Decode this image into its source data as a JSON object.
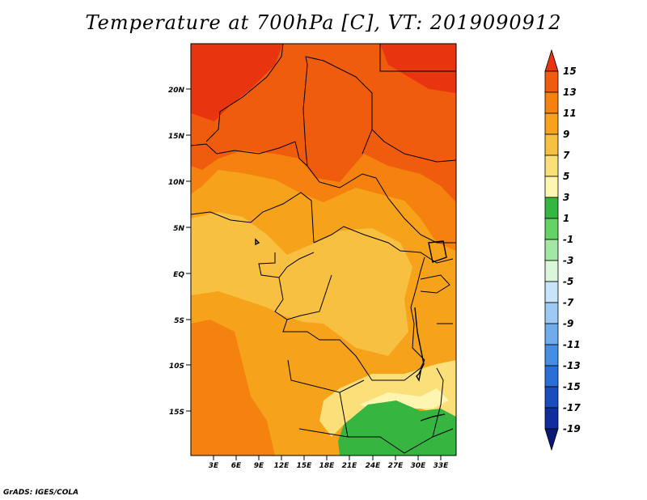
{
  "title": "Temperature at 700hPa [C], VT: 2019090912",
  "credit": "GrADS: IGES/COLA",
  "map": {
    "lat_labels": [
      "20N",
      "15N",
      "10N",
      "5N",
      "EQ",
      "5S",
      "10S",
      "15S"
    ],
    "lon_labels": [
      "3E",
      "6E",
      "9E",
      "12E",
      "15E",
      "18E",
      "21E",
      "24E",
      "27E",
      "30E",
      "33E"
    ],
    "region": "Central Africa",
    "field": "Temperature at 700hPa"
  },
  "colorbar": {
    "labels": [
      "15",
      "13",
      "11",
      "9",
      "7",
      "5",
      "3",
      "1",
      "-1",
      "-3",
      "-5",
      "-7",
      "-9",
      "-11",
      "-13",
      "-15",
      "-17",
      "-19"
    ],
    "colors": [
      "#e8350f",
      "#f05c0d",
      "#f5820f",
      "#f6a21a",
      "#f8c040",
      "#fbe07a",
      "#fef6b0",
      "#36b540",
      "#64d264",
      "#a4e6a4",
      "#dcf6dc",
      "#c6e4fa",
      "#9ccaf4",
      "#6eacec",
      "#468ee2",
      "#2a6ed6",
      "#1a4cbe",
      "#0e2e9e",
      "#0c1878"
    ]
  }
}
